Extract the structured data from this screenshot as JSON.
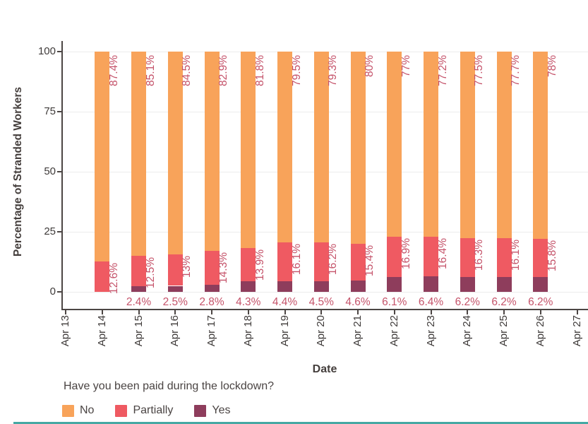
{
  "chart_data": {
    "type": "bar",
    "stacked": true,
    "xlabel": "Date",
    "ylabel": "Percentage of Stranded Workers",
    "legend_title": "Have you been paid during the lockdown?",
    "legend_position": "bottom-left",
    "grid": true,
    "ylim": [
      0,
      100
    ],
    "y_ticks": [
      0,
      25,
      50,
      75,
      100
    ],
    "x_axis_ticks": [
      "Apr 13",
      "Apr 14",
      "Apr 15",
      "Apr 16",
      "Apr 17",
      "Apr 18",
      "Apr 19",
      "Apr 20",
      "Apr 21",
      "Apr 22",
      "Apr 23",
      "Apr 24",
      "Apr 25",
      "Apr 26",
      "Apr 27"
    ],
    "categories": [
      "Apr 14",
      "Apr 15",
      "Apr 16",
      "Apr 17",
      "Apr 18",
      "Apr 19",
      "Apr 20",
      "Apr 21",
      "Apr 22",
      "Apr 23",
      "Apr 24",
      "Apr 25",
      "Apr 26"
    ],
    "series": [
      {
        "name": "No",
        "color": "#F8A35A",
        "values": [
          87.4,
          85.1,
          84.5,
          82.9,
          81.8,
          79.5,
          79.3,
          80,
          77,
          77.2,
          77.5,
          77.7,
          78
        ],
        "labels": [
          "87.4%",
          "85.1%",
          "84.5%",
          "82.9%",
          "81.8%",
          "79.5%",
          "79.3%",
          "80%",
          "77%",
          "77.2%",
          "77.5%",
          "77.7%",
          "78%"
        ]
      },
      {
        "name": "Partially",
        "color": "#EF5A62",
        "values": [
          12.6,
          12.5,
          13,
          14.3,
          13.9,
          16.1,
          16.2,
          15.4,
          16.9,
          16.4,
          16.3,
          16.1,
          15.8
        ],
        "labels": [
          "12.6%",
          "12.5%",
          "13%",
          "14.3%",
          "13.9%",
          "16.1%",
          "16.2%",
          "15.4%",
          "16.9%",
          "16.4%",
          "16.3%",
          "16.1%",
          "15.8%"
        ]
      },
      {
        "name": "Yes",
        "color": "#8E3D5C",
        "values": [
          0,
          2.4,
          2.5,
          2.8,
          4.3,
          4.4,
          4.5,
          4.6,
          6.1,
          6.4,
          6.2,
          6.2,
          6.2
        ],
        "labels": [
          "",
          "2.4%",
          "2.5%",
          "2.8%",
          "4.3%",
          "4.4%",
          "4.5%",
          "4.6%",
          "6.1%",
          "6.4%",
          "6.2%",
          "6.2%",
          "6.2%"
        ]
      }
    ]
  },
  "colors": {
    "background": "#ffffff",
    "grid": "#ececec",
    "axis_line": "#4c4644",
    "axis_text": "#3f3b3a",
    "value_label_text": "#c5536a",
    "bottom_strip": "#45a8a3"
  }
}
